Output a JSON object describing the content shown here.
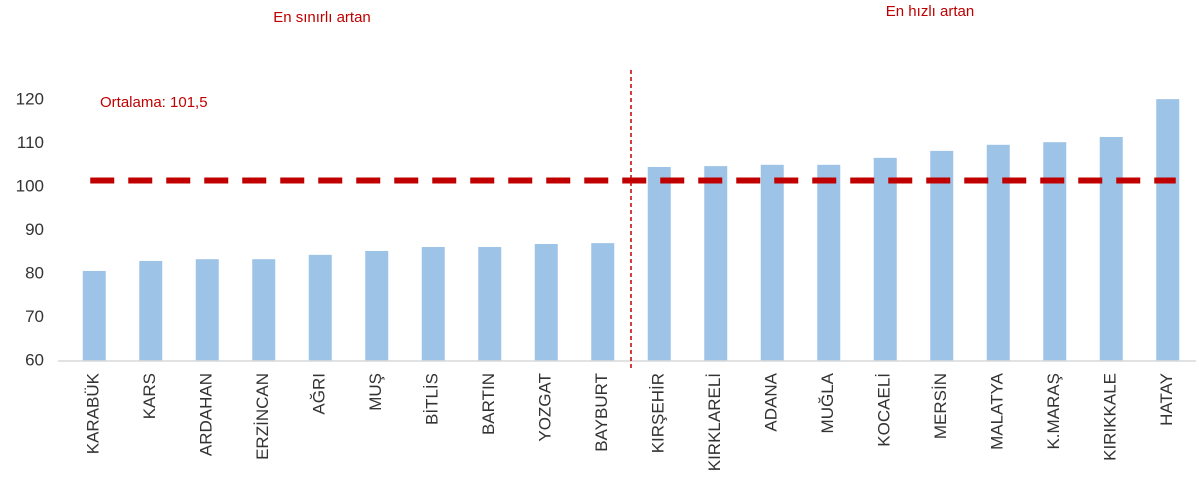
{
  "chart_data": {
    "type": "bar",
    "annotations": {
      "left": "En sınırlı artan",
      "right": "En hızlı artan",
      "mean": "Ortalama: 101,5"
    },
    "mean_line": 101.5,
    "categories": [
      "KARABÜK",
      "KARS",
      "ARDAHAN",
      "ERZİNCAN",
      "AĞRI",
      "MUŞ",
      "BİTLİS",
      "BARTIN",
      "YOZGAT",
      "BAYBURT",
      "KIRŞEHİR",
      "KIRKLARELİ",
      "ADANA",
      "MUĞLA",
      "KOCAELİ",
      "MERSİN",
      "MALATYA",
      "K.MARAŞ",
      "KIRIKKALE",
      "HATAY"
    ],
    "values": [
      80.7,
      83.0,
      83.4,
      83.4,
      84.4,
      85.3,
      86.2,
      86.2,
      86.9,
      87.1,
      104.6,
      104.8,
      105.1,
      105.1,
      106.7,
      108.3,
      109.7,
      110.3,
      111.5,
      120.2
    ],
    "color": "#9dc3e6",
    "mean_color": "#c00000",
    "ylim": [
      60,
      126
    ],
    "yticks": [
      60,
      70,
      80,
      90,
      100,
      110,
      120
    ],
    "grid": false
  }
}
